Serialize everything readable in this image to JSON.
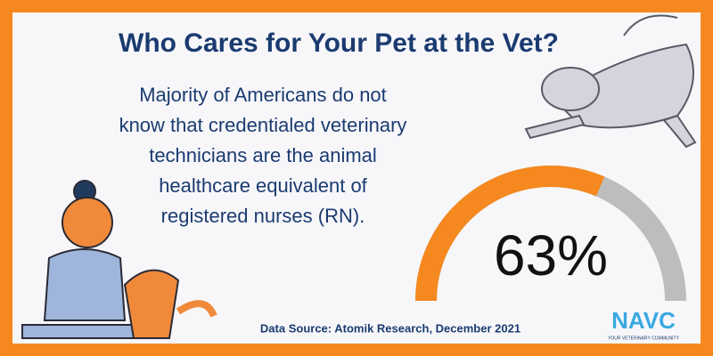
{
  "chart_data": {
    "type": "gauge",
    "title": "Who Cares for Your Pet at the Vet?",
    "description": [
      "Majority of Americans do not",
      "know that credentialed veterinary",
      "technicians are the animal",
      "healthcare equivalent of",
      "registered nurses (RN)."
    ],
    "values": [
      63
    ],
    "value_labels": [
      "63%"
    ],
    "ylim": [
      0,
      100
    ],
    "color": "#f5891f",
    "track_color": "#bdbdbd",
    "source": "Data Source: Atomik Research, December 2021",
    "logo": "NAVC",
    "logo_tagline": "YOUR VETERINARY COMMUNITY"
  }
}
